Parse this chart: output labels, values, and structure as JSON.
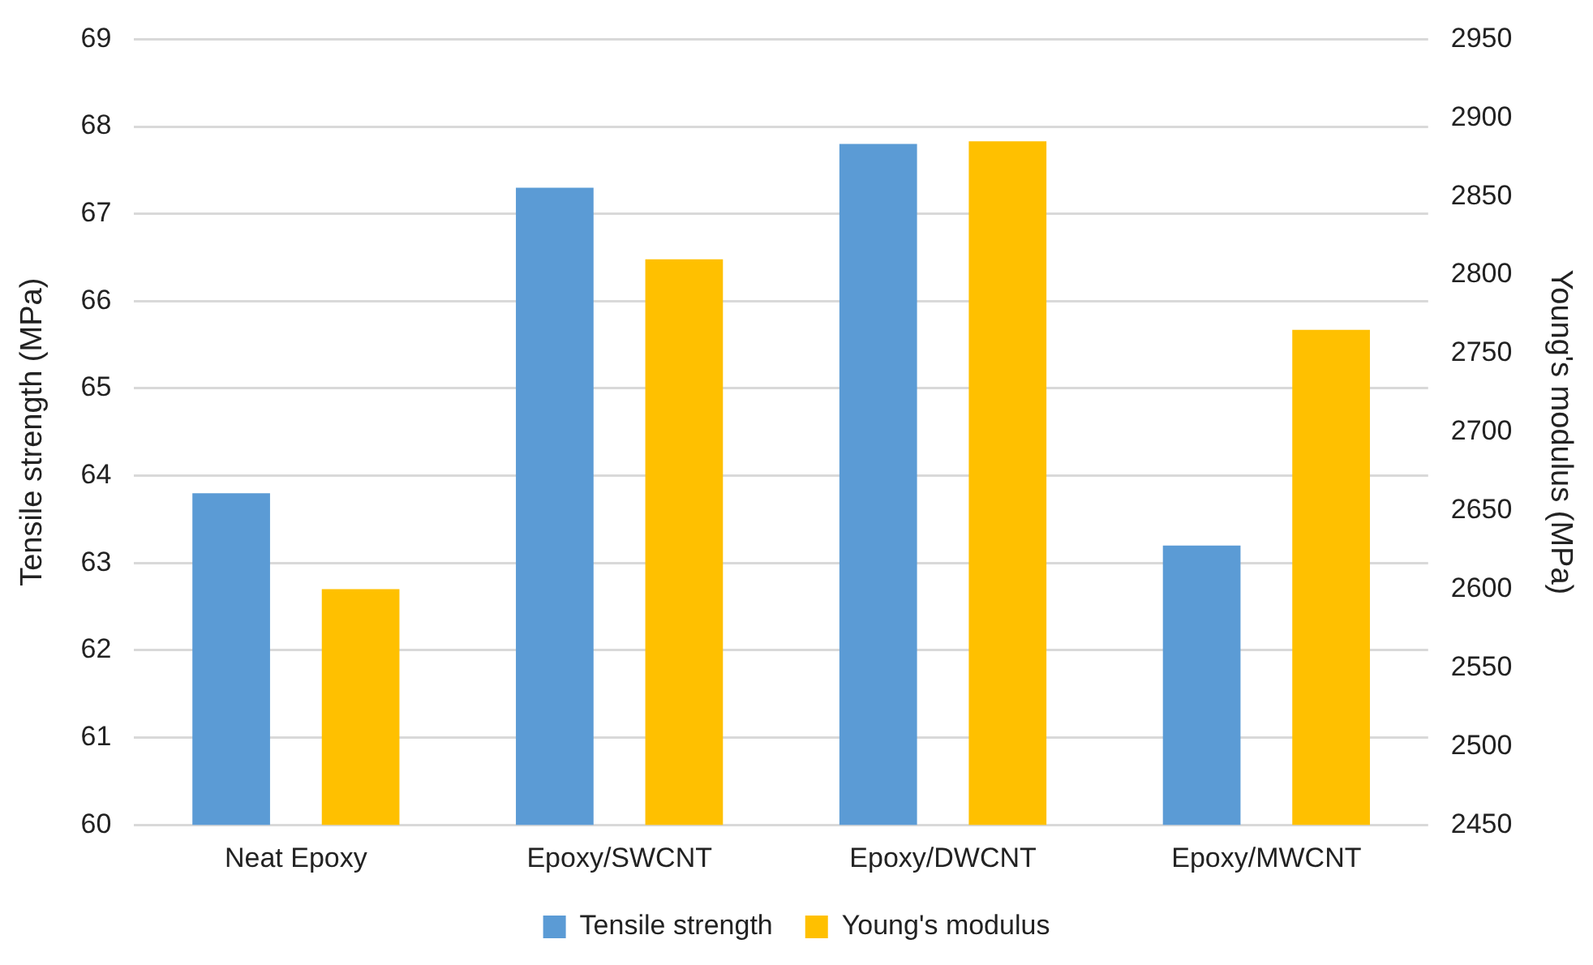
{
  "chart_data": {
    "type": "bar",
    "categories": [
      "Neat Epoxy",
      "Epoxy/SWCNT",
      "Epoxy/DWCNT",
      "Epoxy/MWCNT"
    ],
    "series": [
      {
        "name": "Tensile strength",
        "color": "#5b9bd5",
        "values": [
          63.8,
          67.3,
          67.8,
          63.2
        ]
      },
      {
        "name": "Young's modulus",
        "color": "#ffc000",
        "values": [
          2600,
          2810,
          2885,
          2765
        ],
        "axis": "y2"
      }
    ],
    "ylabel": "Tensile strength (MPa)",
    "y2label": "Young's modulus (MPa)",
    "ylim": [
      60,
      69
    ],
    "yticks": [
      60,
      61,
      62,
      63,
      64,
      65,
      66,
      67,
      68,
      69
    ],
    "y2lim": [
      2450,
      2950
    ],
    "y2ticks": [
      2450,
      2500,
      2550,
      2600,
      2650,
      2700,
      2750,
      2800,
      2850,
      2900,
      2950
    ],
    "grid": "y",
    "legend": "bottom"
  }
}
